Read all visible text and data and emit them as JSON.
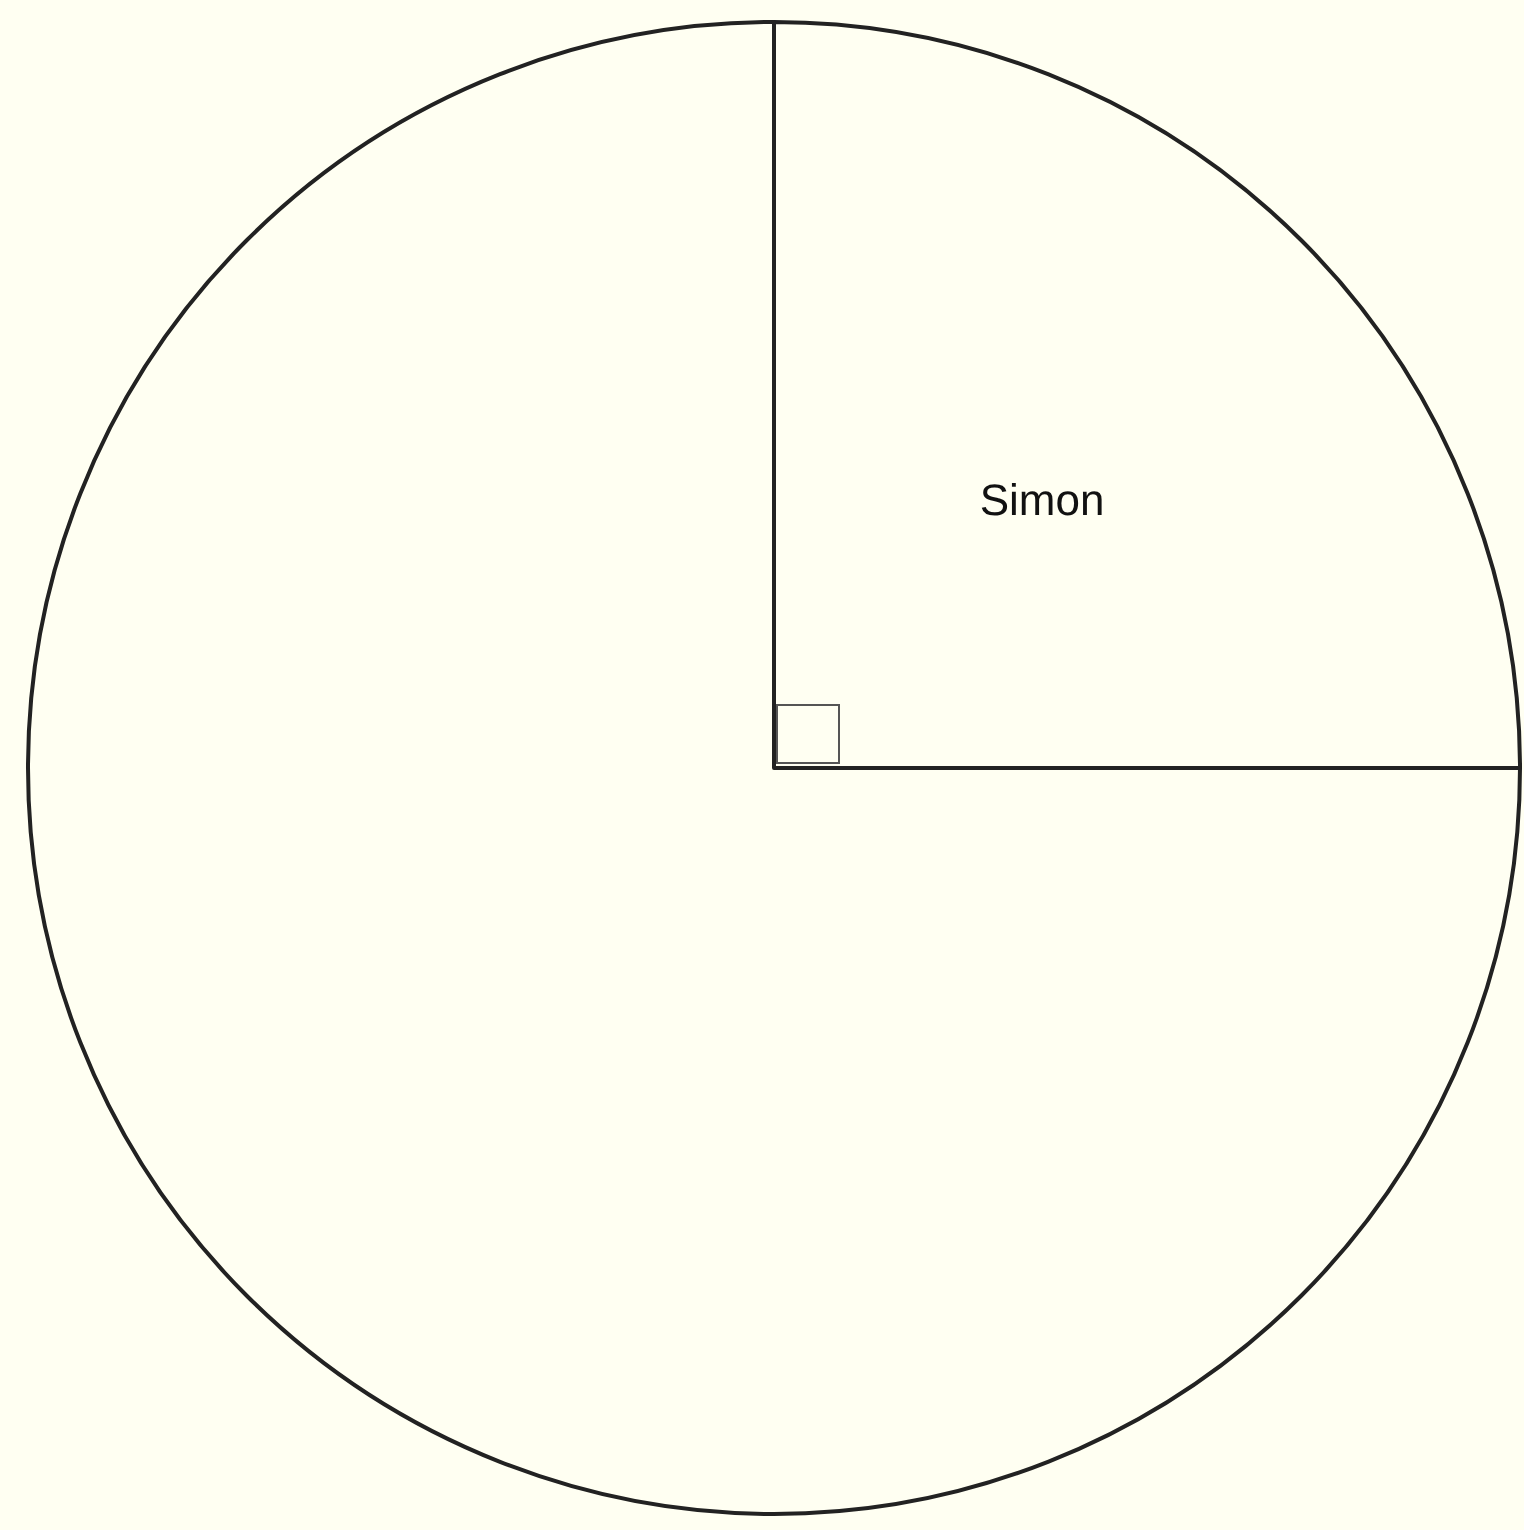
{
  "chart_data": {
    "type": "pie",
    "categories": [
      "Simon",
      null
    ],
    "values": [
      25,
      75
    ],
    "colors": [
      "#fffff2",
      "#fffff2"
    ],
    "legend": false
  }
}
